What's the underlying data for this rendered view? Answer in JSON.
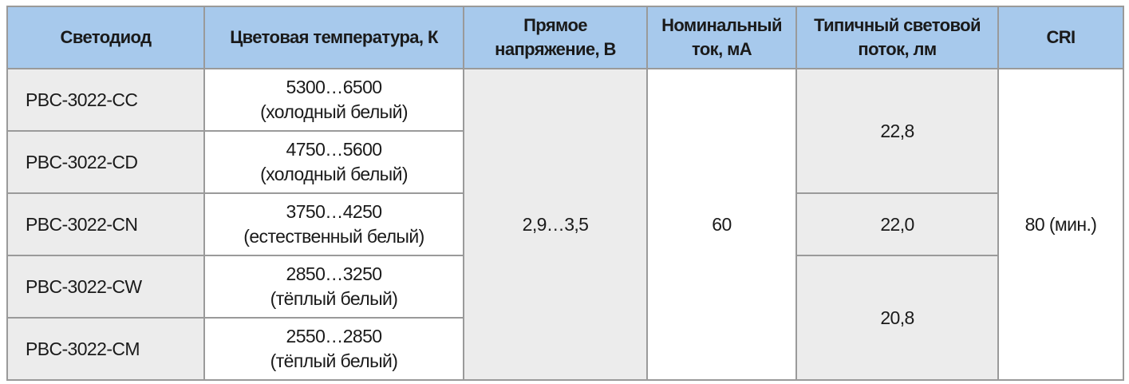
{
  "headers": [
    "Светодиод",
    "Цветовая температура, К",
    "Прямое напряжение, В",
    "Номинальный ток, мА",
    "Типичный световой поток, лм",
    "CRI"
  ],
  "header_lines": {
    "voltage": [
      "Прямое",
      "напряжение, В"
    ],
    "current": [
      "Номинальный",
      "ток, мА"
    ],
    "flux": [
      "Типичный световой",
      "поток, лм"
    ]
  },
  "rows": [
    {
      "led": "PBC-3022-CC",
      "temp": "5300…6500",
      "temp_desc": "(холодный белый)"
    },
    {
      "led": "PBC-3022-CD",
      "temp": "4750…5600",
      "temp_desc": "(холодный белый)"
    },
    {
      "led": "PBC-3022-CN",
      "temp": "3750…4250",
      "temp_desc": "(естественный белый)"
    },
    {
      "led": "PBC-3022-CW",
      "temp": "2850…3250",
      "temp_desc": "(тёплый белый)"
    },
    {
      "led": "PBC-3022-CM",
      "temp": "2550…2850",
      "temp_desc": "(тёплый белый)"
    }
  ],
  "voltage": "2,9…3,5",
  "current": "60",
  "flux": [
    "22,8",
    "22,0",
    "20,8"
  ],
  "cri": "80 (мин.)",
  "colors": {
    "header_bg": "#a7c9ec",
    "gray_cell": "#ececec",
    "border": "#9a9a9a"
  }
}
